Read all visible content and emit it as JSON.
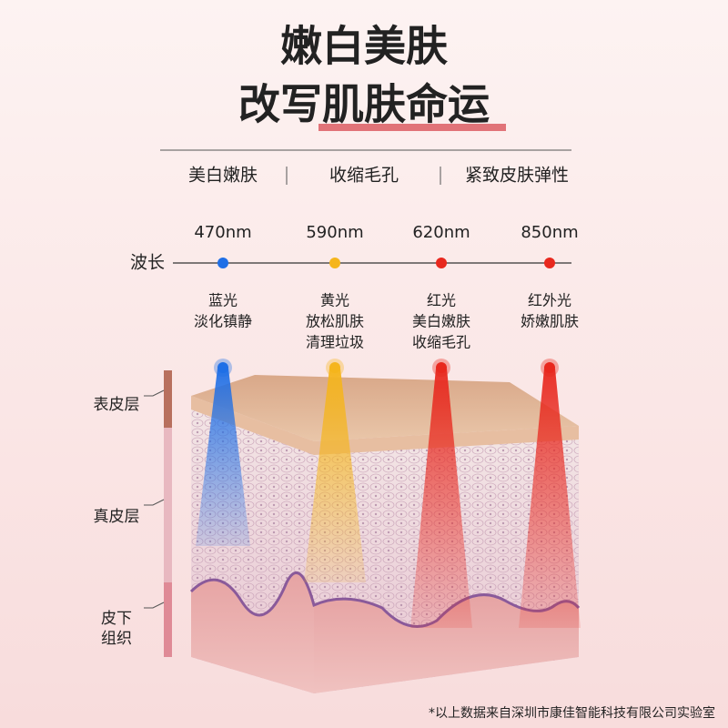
{
  "header": {
    "title_lines": [
      "嫩白美肤",
      "改写肌肤命运"
    ]
  },
  "features": [
    "美白嫩肤",
    "收缩毛孔",
    "紧致皮肤弹性"
  ],
  "wavelength": {
    "label": "波长",
    "bands": [
      {
        "nm": "470nm",
        "color": "#1f6fe6",
        "effect_lines": [
          "蓝光",
          "淡化镇静"
        ]
      },
      {
        "nm": "590nm",
        "color": "#f5b51c",
        "effect_lines": [
          "黄光",
          "放松肌肤",
          "清理垃圾"
        ]
      },
      {
        "nm": "620nm",
        "color": "#e8281e",
        "effect_lines": [
          "红光",
          "美白嫩肤",
          "收缩毛孔"
        ]
      },
      {
        "nm": "850nm",
        "color": "#e8281e",
        "effect_lines": [
          "红外光",
          "娇嫩肌肤"
        ]
      }
    ]
  },
  "layers": [
    {
      "label_lines": [
        "表皮层"
      ],
      "color": "#b8705e"
    },
    {
      "label_lines": [
        "真皮层"
      ],
      "color": "#e8b8c0"
    },
    {
      "label_lines": [
        "皮下",
        "组织"
      ],
      "color": "#df8a96"
    }
  ],
  "footnote": "*以上数据来自深圳市康佳智能科技有限公司实验室"
}
